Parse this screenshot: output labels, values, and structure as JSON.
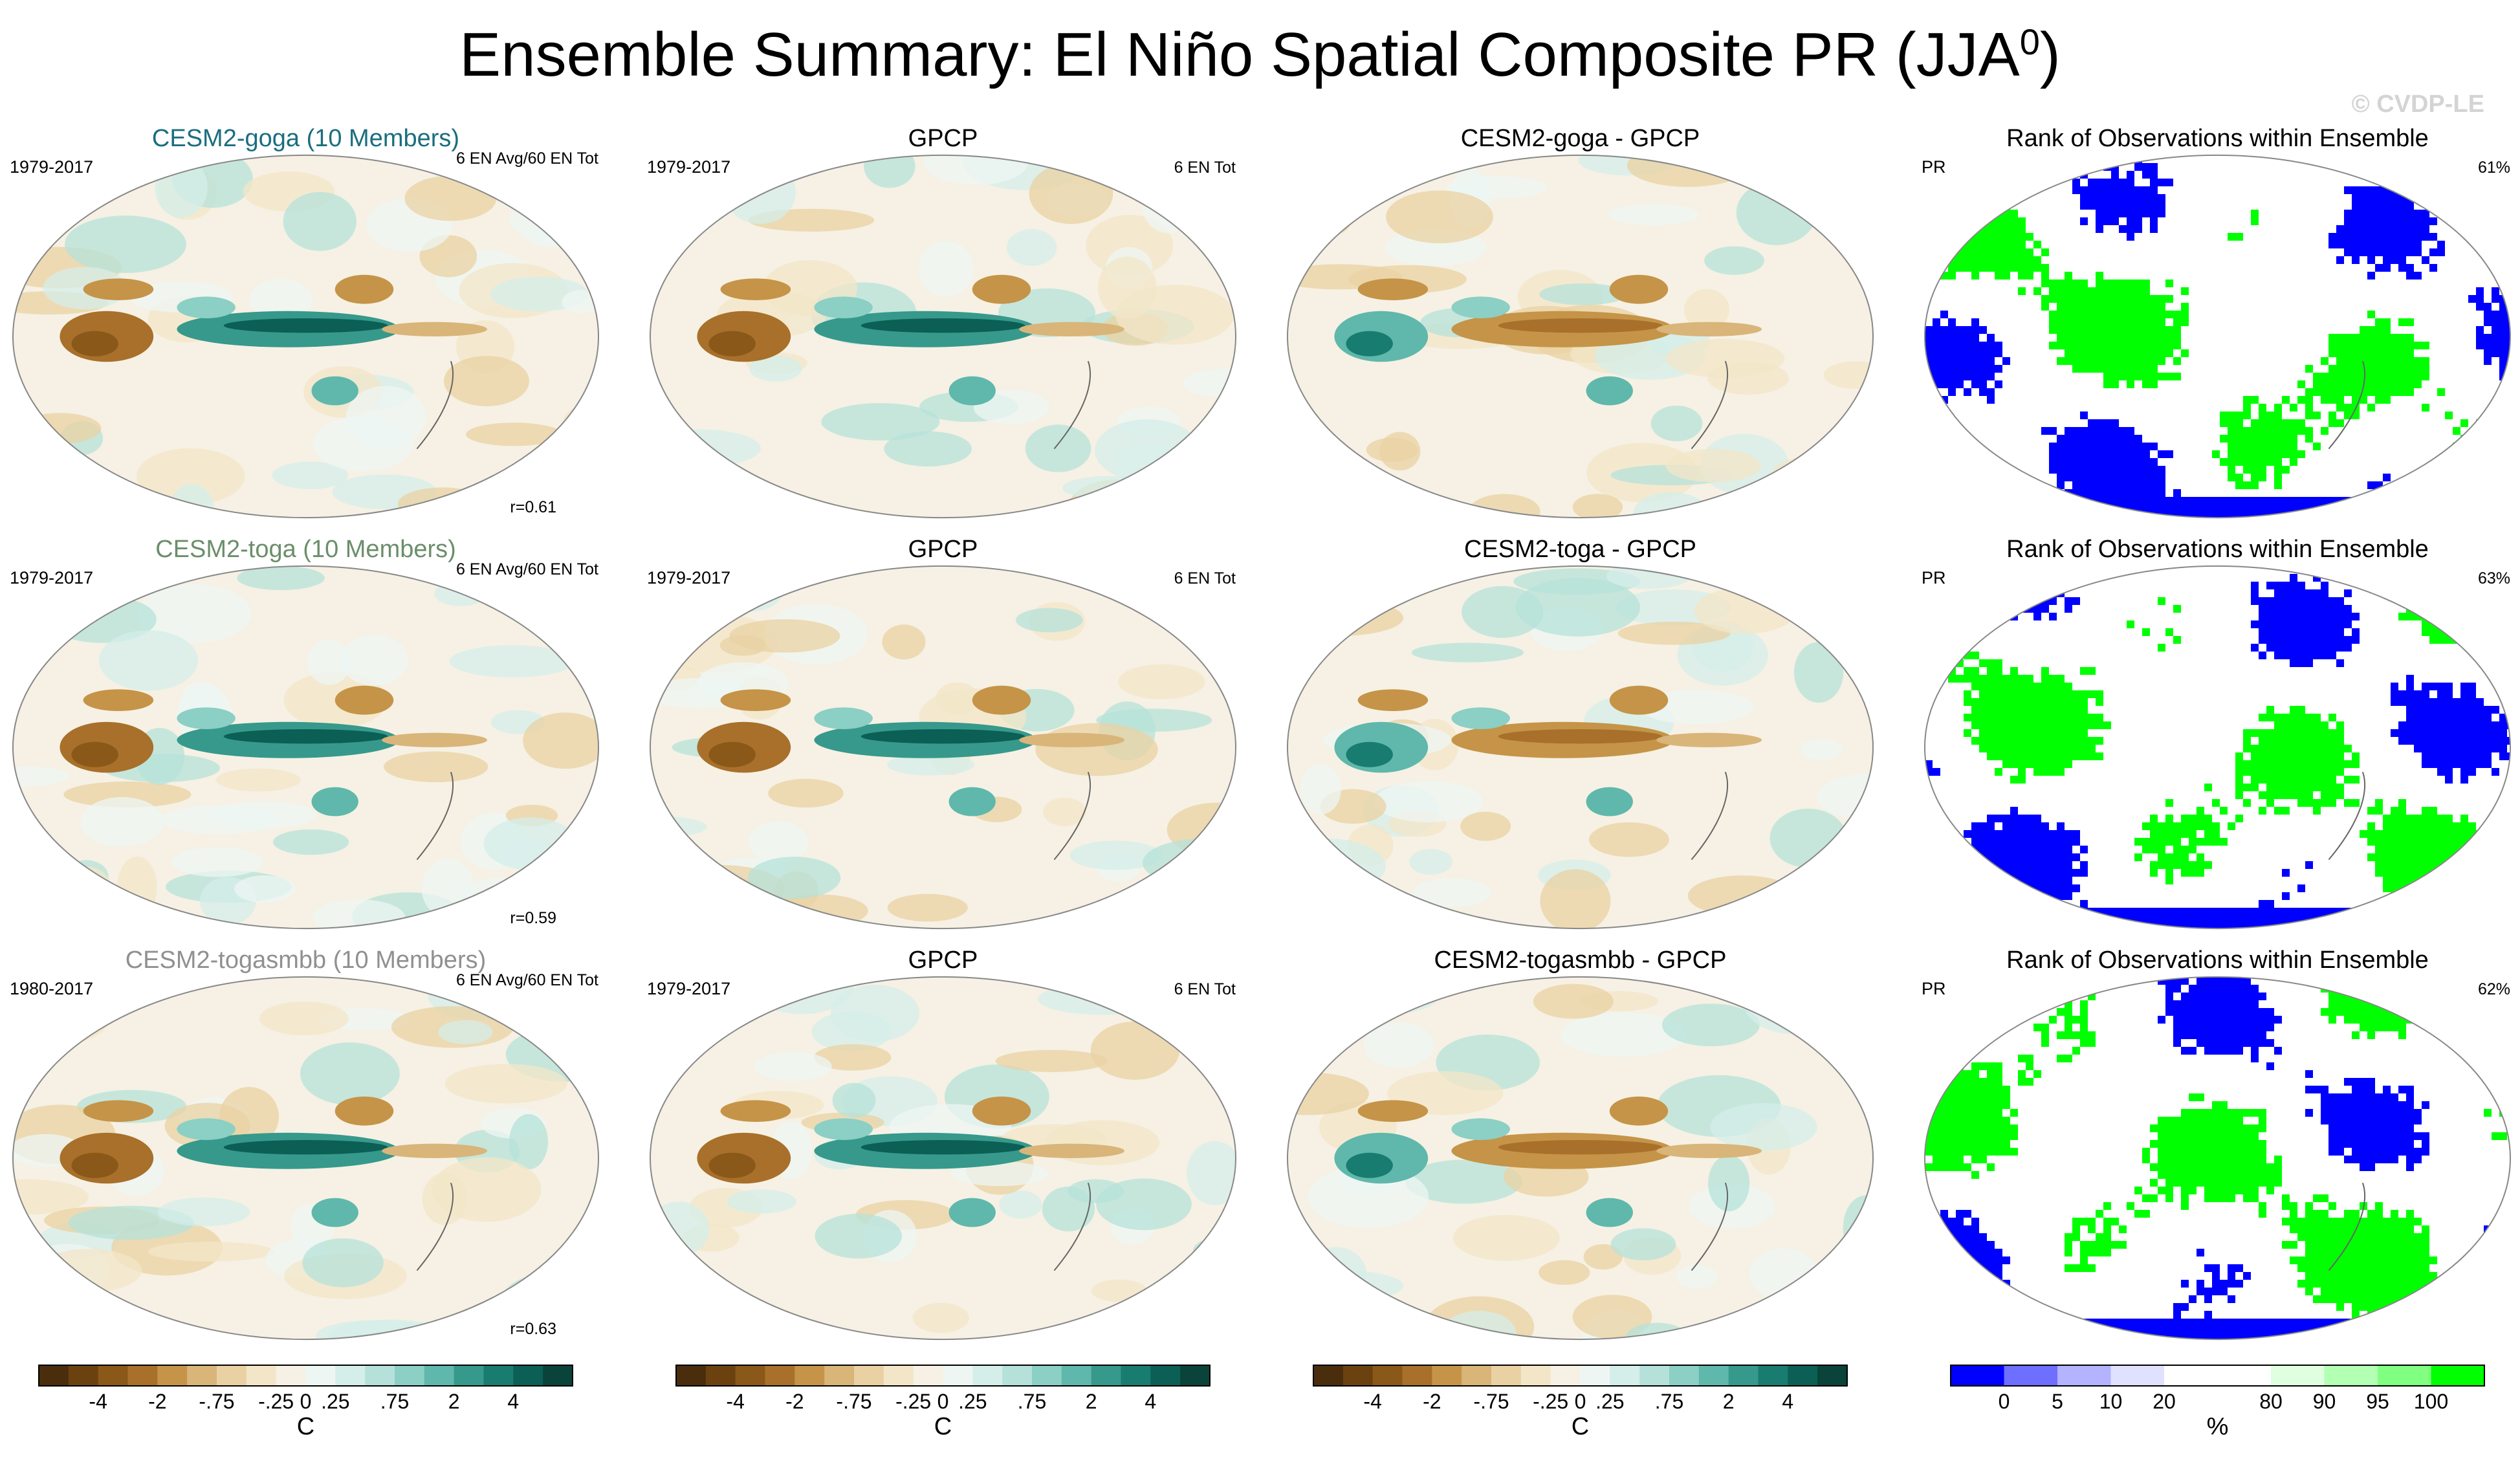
{
  "page": {
    "title": "Ensemble Summary: El Niño Spatial Composite PR (JJA",
    "title_sup": "0",
    "title_close": ")",
    "watermark": "© CVDP-LE"
  },
  "colors": {
    "model1_title": "#1a6e7e",
    "model2_title": "#6b8e6b",
    "model3_title": "#909090",
    "blue": "#0000ff",
    "green": "#00ff00",
    "land_outline": "#666666"
  },
  "chart_data": [
    {
      "type": "heatmap",
      "row": 0,
      "col": 0,
      "title": "CESM2-goga (10 Members)",
      "period": "1979-2017",
      "count": "6 EN Avg/60 EN Tot",
      "corr": "r=0.61"
    },
    {
      "type": "heatmap",
      "row": 0,
      "col": 1,
      "title": "GPCP",
      "period": "1979-2017",
      "count": "6 EN Tot"
    },
    {
      "type": "heatmap",
      "row": 0,
      "col": 2,
      "title": "CESM2-goga - GPCP"
    },
    {
      "type": "heatmap",
      "row": 0,
      "col": 3,
      "title": "Rank of Observations within Ensemble",
      "var": "PR",
      "pct": "61%"
    },
    {
      "type": "heatmap",
      "row": 1,
      "col": 0,
      "title": "CESM2-toga (10 Members)",
      "period": "1979-2017",
      "count": "6 EN Avg/60 EN Tot",
      "corr": "r=0.59"
    },
    {
      "type": "heatmap",
      "row": 1,
      "col": 1,
      "title": "GPCP",
      "period": "1979-2017",
      "count": "6 EN Tot"
    },
    {
      "type": "heatmap",
      "row": 1,
      "col": 2,
      "title": "CESM2-toga - GPCP"
    },
    {
      "type": "heatmap",
      "row": 1,
      "col": 3,
      "title": "Rank of Observations within Ensemble",
      "var": "PR",
      "pct": "63%"
    },
    {
      "type": "heatmap",
      "row": 2,
      "col": 0,
      "title": "CESM2-togasmbb (10 Members)",
      "period": "1980-2017",
      "count": "6 EN Avg/60 EN Tot",
      "corr": "r=0.63"
    },
    {
      "type": "heatmap",
      "row": 2,
      "col": 1,
      "title": "GPCP",
      "period": "1979-2017",
      "count": "6 EN Tot"
    },
    {
      "type": "heatmap",
      "row": 2,
      "col": 2,
      "title": "CESM2-togasmbb - GPCP"
    },
    {
      "type": "heatmap",
      "row": 2,
      "col": 3,
      "title": "Rank of Observations within Ensemble",
      "var": "PR",
      "pct": "62%"
    }
  ],
  "colorbars": {
    "anomaly": {
      "colors": [
        "#4a2d0c",
        "#6b420f",
        "#8a5818",
        "#a8702a",
        "#c59448",
        "#d9b57a",
        "#e9d1a3",
        "#f3e6c8",
        "#f6f1e4",
        "#eef6f4",
        "#d4eeea",
        "#b5e1da",
        "#8ccfc4",
        "#5fb8ab",
        "#36998c",
        "#187c70",
        "#0b5f55",
        "#0a4339"
      ],
      "ticks": [
        "-4",
        "-2",
        "-.75",
        "-.25",
        "0",
        ".25",
        ".75",
        "2",
        "4"
      ],
      "tick_edges": [
        2,
        4,
        6,
        8,
        9,
        10,
        12,
        14,
        16
      ],
      "unit": "C"
    },
    "rank": {
      "colors": [
        "#0000ff",
        "#6e6eff",
        "#b3b3ff",
        "#e0e0ff",
        "#ffffff",
        "#ffffff",
        "#e0ffe0",
        "#b3ffb3",
        "#80ff80",
        "#00ff00"
      ],
      "ticks": [
        "0",
        "5",
        "10",
        "20",
        "80",
        "90",
        "95",
        "100"
      ],
      "tick_edges": [
        1,
        2,
        3,
        4,
        6,
        7,
        8,
        9
      ],
      "unit": "%"
    }
  }
}
